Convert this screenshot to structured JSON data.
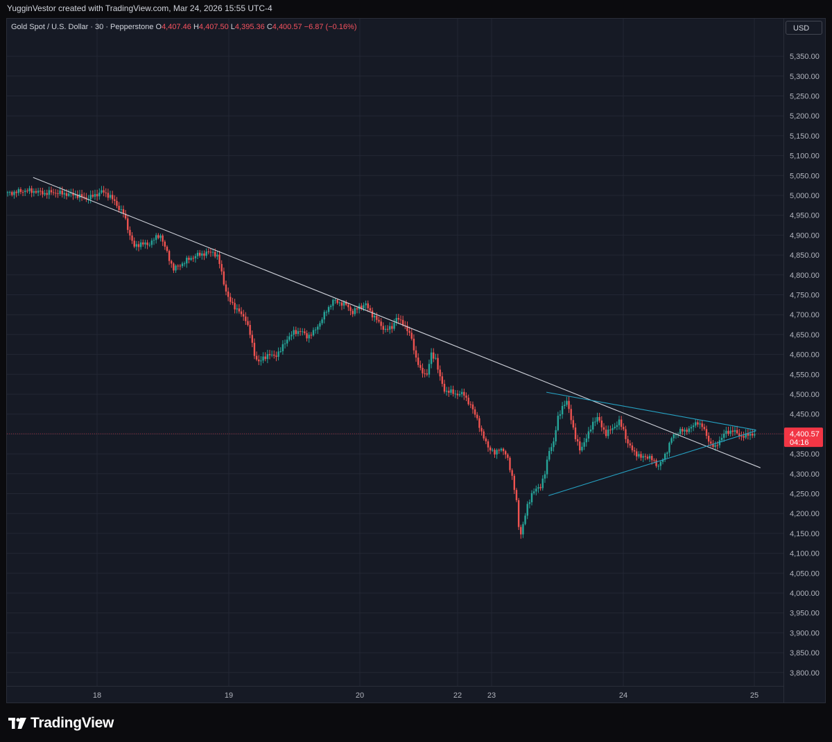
{
  "header": {
    "credit": "YugginVestor created with TradingView.com, Mar 24, 2026 15:55 UTC-4"
  },
  "legend": {
    "symbol": "Gold Spot / U.S. Dollar · 30 · Pepperstone",
    "o_label": "O",
    "o_value": "4,407.46",
    "h_label": "H",
    "h_value": "4,407.50",
    "l_label": "L",
    "l_value": "4,395.36",
    "c_label": "C",
    "c_value": "4,400.57",
    "change": "−6.87 (−0.16%)"
  },
  "currency": "USD",
  "price_tag": {
    "price": "4,400.57",
    "countdown": "04:16"
  },
  "brand": {
    "name": "TradingView"
  },
  "colors": {
    "up": "#26a69a",
    "down": "#ef5350",
    "trendline": "#d1d4dc",
    "triangle": "#26a3c4",
    "tag": "#f23645"
  },
  "chart_data": {
    "type": "candlestick",
    "y_ticks": [
      "3,800.00",
      "3,850.00",
      "3,900.00",
      "3,950.00",
      "4,000.00",
      "4,050.00",
      "4,100.00",
      "4,150.00",
      "4,200.00",
      "4,250.00",
      "4,300.00",
      "4,350.00",
      "4,400.00",
      "4,450.00",
      "4,500.00",
      "4,550.00",
      "4,600.00",
      "4,650.00",
      "4,700.00",
      "4,750.00",
      "4,800.00",
      "4,850.00",
      "4,900.00",
      "4,950.00",
      "5,000.00",
      "5,050.00",
      "5,100.00",
      "5,150.00",
      "5,200.00",
      "5,250.00",
      "5,300.00",
      "5,350.00"
    ],
    "ylim": [
      3775,
      5400
    ],
    "x_ticks": [
      "18",
      "19",
      "20",
      "22",
      "23",
      "24",
      "25"
    ],
    "price_path": [
      [
        0,
        5005
      ],
      [
        8,
        5012
      ],
      [
        13,
        5010
      ],
      [
        17,
        5005
      ],
      [
        20,
        5008
      ],
      [
        28,
        5003
      ],
      [
        32,
        5000
      ],
      [
        36,
        4992
      ],
      [
        40,
        5000
      ],
      [
        43,
        5010
      ],
      [
        47,
        4998
      ],
      [
        50,
        4975
      ],
      [
        53,
        4955
      ],
      [
        56,
        4900
      ],
      [
        58,
        4870
      ],
      [
        61,
        4880
      ],
      [
        64,
        4875
      ],
      [
        67,
        4890
      ],
      [
        70,
        4900
      ],
      [
        72,
        4870
      ],
      [
        74,
        4840
      ],
      [
        76,
        4815
      ],
      [
        79,
        4825
      ],
      [
        83,
        4840
      ],
      [
        87,
        4850
      ],
      [
        91,
        4855
      ],
      [
        94,
        4858
      ],
      [
        96,
        4845
      ],
      [
        97.5,
        4820
      ],
      [
        99,
        4780
      ],
      [
        101,
        4740
      ],
      [
        104,
        4720
      ],
      [
        107,
        4700
      ],
      [
        109,
        4690
      ],
      [
        111,
        4650
      ],
      [
        113,
        4600
      ],
      [
        115,
        4580
      ],
      [
        117,
        4590
      ],
      [
        119,
        4600
      ],
      [
        122,
        4595
      ],
      [
        125,
        4610
      ],
      [
        128,
        4640
      ],
      [
        131,
        4655
      ],
      [
        134,
        4660
      ],
      [
        137,
        4645
      ],
      [
        140,
        4655
      ],
      [
        143,
        4680
      ],
      [
        146,
        4710
      ],
      [
        149,
        4735
      ],
      [
        152,
        4730
      ],
      [
        155,
        4725
      ],
      [
        158,
        4705
      ],
      [
        161,
        4720
      ],
      [
        164,
        4725
      ],
      [
        167,
        4700
      ],
      [
        170,
        4680
      ],
      [
        173,
        4660
      ],
      [
        176,
        4670
      ],
      [
        178,
        4690
      ],
      [
        181,
        4680
      ],
      [
        183,
        4660
      ],
      [
        185,
        4640
      ],
      [
        187,
        4590
      ],
      [
        189,
        4560
      ],
      [
        192,
        4550
      ],
      [
        194,
        4600
      ],
      [
        196,
        4590
      ],
      [
        198,
        4540
      ],
      [
        200,
        4510
      ],
      [
        203,
        4505
      ],
      [
        206,
        4500
      ],
      [
        209,
        4500
      ],
      [
        211,
        4480
      ],
      [
        213,
        4460
      ],
      [
        215,
        4440
      ],
      [
        217,
        4400
      ],
      [
        219,
        4380
      ],
      [
        221,
        4360
      ],
      [
        223,
        4350
      ],
      [
        225,
        4365
      ],
      [
        227,
        4355
      ],
      [
        229,
        4340
      ],
      [
        231,
        4290
      ],
      [
        233,
        4230
      ],
      [
        234.5,
        4140
      ],
      [
        236,
        4170
      ],
      [
        238,
        4220
      ],
      [
        240,
        4250
      ],
      [
        242,
        4260
      ],
      [
        244,
        4270
      ],
      [
        246,
        4300
      ],
      [
        248,
        4360
      ],
      [
        250,
        4380
      ],
      [
        252,
        4440
      ],
      [
        254,
        4470
      ],
      [
        256,
        4480
      ],
      [
        258,
        4440
      ],
      [
        260,
        4390
      ],
      [
        262,
        4360
      ],
      [
        264,
        4380
      ],
      [
        266,
        4400
      ],
      [
        268,
        4430
      ],
      [
        270,
        4440
      ],
      [
        272,
        4420
      ],
      [
        274,
        4400
      ],
      [
        276,
        4410
      ],
      [
        278,
        4420
      ],
      [
        280,
        4430
      ],
      [
        282,
        4410
      ],
      [
        284,
        4375
      ],
      [
        286,
        4360
      ],
      [
        288,
        4350
      ],
      [
        290,
        4340
      ],
      [
        292,
        4345
      ],
      [
        294,
        4340
      ],
      [
        296,
        4330
      ],
      [
        298,
        4320
      ],
      [
        300,
        4335
      ],
      [
        302,
        4360
      ],
      [
        304,
        4390
      ],
      [
        306,
        4400
      ],
      [
        308,
        4410
      ],
      [
        310,
        4405
      ],
      [
        312,
        4415
      ],
      [
        314,
        4420
      ],
      [
        316,
        4430
      ],
      [
        318,
        4420
      ],
      [
        320,
        4395
      ],
      [
        322,
        4375
      ],
      [
        324,
        4365
      ],
      [
        326,
        4385
      ],
      [
        328,
        4400
      ],
      [
        330,
        4405
      ],
      [
        332,
        4410
      ],
      [
        334,
        4400
      ],
      [
        336,
        4395
      ],
      [
        338,
        4395
      ],
      [
        340,
        4400
      ],
      [
        342,
        4400
      ]
    ],
    "trendline": [
      [
        12,
        5045
      ],
      [
        345,
        4315
      ]
    ],
    "triangle_upper": [
      [
        247,
        4505
      ],
      [
        343,
        4410
      ]
    ],
    "triangle_lower": [
      [
        248,
        4245
      ],
      [
        343,
        4408
      ]
    ]
  }
}
